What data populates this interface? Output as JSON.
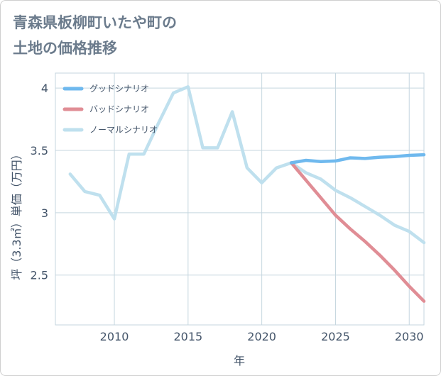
{
  "title_lines": [
    "青森県板柳町いたや町の",
    "土地の価格推移"
  ],
  "chart_data": {
    "type": "line",
    "xlabel": "年",
    "ylabel": "坪（3.3㎡）単価（万円）",
    "xlim": [
      2006,
      2031
    ],
    "ylim": [
      2.1,
      4.12
    ],
    "x_ticks": [
      2010,
      2015,
      2020,
      2025,
      2030
    ],
    "y_ticks": [
      2.5,
      3,
      3.5,
      4
    ],
    "x_tick_labels": [
      "2010",
      "2015",
      "2020",
      "2025",
      "2030"
    ],
    "y_tick_labels": [
      "2.5",
      "3",
      "3.5",
      "4"
    ],
    "grid": true,
    "legend_placement": "top-left",
    "series": [
      {
        "name": "グッドシナリオ",
        "color": "#6fb9ee",
        "x": [
          2022,
          2023,
          2024,
          2025,
          2026,
          2027,
          2028,
          2029,
          2030,
          2031
        ],
        "values": [
          3.4,
          3.42,
          3.41,
          3.415,
          3.44,
          3.435,
          3.445,
          3.45,
          3.46,
          3.465
        ]
      },
      {
        "name": "バッドシナリオ",
        "color": "#e08d95",
        "x": [
          2022,
          2023,
          2024,
          2025,
          2026,
          2027,
          2028,
          2029,
          2030,
          2031
        ],
        "values": [
          3.4,
          3.26,
          3.12,
          2.98,
          2.87,
          2.77,
          2.66,
          2.54,
          2.41,
          2.29
        ]
      },
      {
        "name": "ノーマルシナリオ",
        "color": "#bfe0ee",
        "x": [
          2007,
          2008,
          2009,
          2010,
          2011,
          2012,
          2013,
          2014,
          2015,
          2016,
          2017,
          2018,
          2019,
          2020,
          2021,
          2022,
          2023,
          2024,
          2025,
          2026,
          2027,
          2028,
          2029,
          2030,
          2031
        ],
        "values": [
          3.31,
          3.17,
          3.14,
          2.95,
          3.47,
          3.47,
          3.72,
          3.96,
          4.01,
          3.52,
          3.52,
          3.81,
          3.36,
          3.24,
          3.36,
          3.4,
          3.32,
          3.27,
          3.18,
          3.12,
          3.05,
          2.98,
          2.9,
          2.85,
          2.76
        ]
      }
    ]
  }
}
